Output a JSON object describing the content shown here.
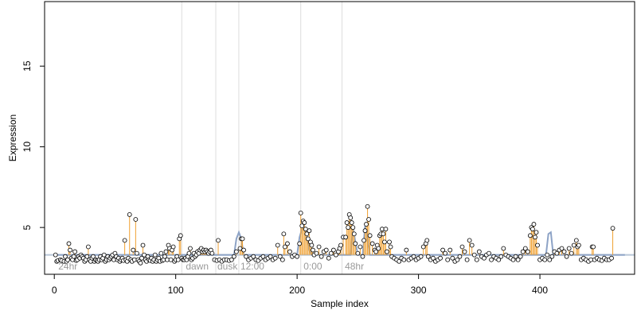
{
  "chart_data": {
    "type": "scatter",
    "title": "",
    "xlabel": "Sample index",
    "ylabel": "Expression",
    "xlim": [
      -8,
      478
    ],
    "ylim": [
      2.1,
      19.0
    ],
    "x_ticks": [
      0,
      100,
      200,
      300,
      400
    ],
    "x_tick_labels": [
      "0",
      "100",
      "200",
      "300",
      "400"
    ],
    "y_ticks": [
      5,
      10,
      15
    ],
    "y_tick_labels": [
      "5",
      "10",
      "15"
    ],
    "grid": false,
    "legend": "none",
    "vlines": [
      105,
      133,
      152,
      203,
      237
    ],
    "annotations": [
      {
        "x": 2,
        "label": "24hr"
      },
      {
        "x": 107,
        "label": "dawn"
      },
      {
        "x": 133,
        "label": "dusk"
      },
      {
        "x": 152,
        "label": "12:00"
      },
      {
        "x": 204,
        "label": "0:00"
      },
      {
        "x": 238,
        "label": "48hr"
      }
    ],
    "baseline": 3.3,
    "fit_curve": [
      [
        0,
        3.3
      ],
      [
        148,
        3.3
      ],
      [
        150,
        4.3
      ],
      [
        152,
        4.7
      ],
      [
        154,
        4.3
      ],
      [
        156,
        3.3
      ],
      [
        200,
        3.3
      ],
      [
        202,
        4.4
      ],
      [
        204,
        4.9
      ],
      [
        206,
        4.9
      ],
      [
        208,
        4.5
      ],
      [
        210,
        3.6
      ],
      [
        212,
        3.3
      ],
      [
        244,
        3.3
      ],
      [
        246,
        5.0
      ],
      [
        248,
        4.1
      ],
      [
        250,
        3.3
      ],
      [
        254,
        3.3
      ],
      [
        256,
        5.1
      ],
      [
        258,
        4.3
      ],
      [
        260,
        3.3
      ],
      [
        405,
        3.3
      ],
      [
        407,
        4.6
      ],
      [
        409,
        4.7
      ],
      [
        411,
        3.3
      ],
      [
        470,
        3.3
      ]
    ],
    "points": [
      [
        1,
        3.3
      ],
      [
        2,
        2.9
      ],
      [
        3,
        2.95
      ],
      [
        5,
        3.0
      ],
      [
        6,
        2.95
      ],
      [
        8,
        2.9
      ],
      [
        9,
        3.2
      ],
      [
        10,
        2.9
      ],
      [
        11,
        3.0
      ],
      [
        12,
        4.0
      ],
      [
        13,
        3.6
      ],
      [
        14,
        3.1
      ],
      [
        15,
        3.0
      ],
      [
        16,
        3.2
      ],
      [
        17,
        3.5
      ],
      [
        18,
        2.95
      ],
      [
        19,
        3.0
      ],
      [
        20,
        3.2
      ],
      [
        21,
        3.1
      ],
      [
        22,
        3.3
      ],
      [
        23,
        3.2
      ],
      [
        24,
        3.1
      ],
      [
        25,
        2.9
      ],
      [
        26,
        3.0
      ],
      [
        27,
        3.2
      ],
      [
        28,
        3.8
      ],
      [
        29,
        3.0
      ],
      [
        30,
        2.9
      ],
      [
        31,
        3.1
      ],
      [
        32,
        3.2
      ],
      [
        33,
        2.9
      ],
      [
        34,
        3.0
      ],
      [
        35,
        2.95
      ],
      [
        36,
        2.9
      ],
      [
        37,
        3.0
      ],
      [
        38,
        3.2
      ],
      [
        39,
        3.0
      ],
      [
        40,
        3.1
      ],
      [
        41,
        3.3
      ],
      [
        42,
        2.9
      ],
      [
        43,
        3.0
      ],
      [
        44,
        3.2
      ],
      [
        45,
        3.0
      ],
      [
        46,
        3.1
      ],
      [
        47,
        3.2
      ],
      [
        48,
        3.3
      ],
      [
        49,
        3.0
      ],
      [
        50,
        3.4
      ],
      [
        51,
        3.2
      ],
      [
        52,
        3.0
      ],
      [
        53,
        3.1
      ],
      [
        54,
        2.9
      ],
      [
        55,
        3.0
      ],
      [
        56,
        3.1
      ],
      [
        57,
        2.95
      ],
      [
        58,
        4.2
      ],
      [
        59,
        3.0
      ],
      [
        60,
        2.9
      ],
      [
        61,
        3.1
      ],
      [
        62,
        5.8
      ],
      [
        63,
        3.0
      ],
      [
        64,
        2.9
      ],
      [
        65,
        3.6
      ],
      [
        66,
        3.0
      ],
      [
        67,
        5.5
      ],
      [
        68,
        3.4
      ],
      [
        69,
        3.0
      ],
      [
        70,
        2.9
      ],
      [
        71,
        2.8
      ],
      [
        72,
        3.1
      ],
      [
        73,
        3.9
      ],
      [
        74,
        3.3
      ],
      [
        75,
        3.0
      ],
      [
        76,
        2.9
      ],
      [
        77,
        3.2
      ],
      [
        78,
        3.0
      ],
      [
        79,
        2.95
      ],
      [
        80,
        3.1
      ],
      [
        81,
        2.9
      ],
      [
        82,
        3.0
      ],
      [
        83,
        3.3
      ],
      [
        84,
        2.9
      ],
      [
        85,
        3.0
      ],
      [
        86,
        3.1
      ],
      [
        87,
        2.9
      ],
      [
        88,
        3.4
      ],
      [
        89,
        2.95
      ],
      [
        90,
        3.0
      ],
      [
        91,
        3.2
      ],
      [
        92,
        3.5
      ],
      [
        93,
        3.0
      ],
      [
        94,
        3.9
      ],
      [
        95,
        3.7
      ],
      [
        96,
        3.0
      ],
      [
        97,
        3.6
      ],
      [
        98,
        3.8
      ],
      [
        99,
        2.9
      ],
      [
        100,
        3.0
      ],
      [
        101,
        3.2
      ],
      [
        102,
        3.0
      ],
      [
        103,
        4.3
      ],
      [
        104,
        4.5
      ],
      [
        105,
        3.1
      ],
      [
        106,
        3.0
      ],
      [
        107,
        3.0
      ],
      [
        108,
        3.1
      ],
      [
        109,
        3.0
      ],
      [
        110,
        3.2
      ],
      [
        111,
        3.4
      ],
      [
        112,
        3.7
      ],
      [
        113,
        3.0
      ],
      [
        114,
        3.1
      ],
      [
        115,
        3.4
      ],
      [
        116,
        3.2
      ],
      [
        117,
        3.3
      ],
      [
        118,
        3.5
      ],
      [
        119,
        3.4
      ],
      [
        120,
        3.6
      ],
      [
        121,
        3.7
      ],
      [
        122,
        3.5
      ],
      [
        123,
        3.6
      ],
      [
        124,
        3.5
      ],
      [
        125,
        3.6
      ],
      [
        126,
        3.5
      ],
      [
        127,
        3.4
      ],
      [
        128,
        3.5
      ],
      [
        129,
        3.6
      ],
      [
        130,
        3.4
      ],
      [
        132,
        3.0
      ],
      [
        134,
        2.95
      ],
      [
        135,
        4.2
      ],
      [
        136,
        3.0
      ],
      [
        138,
        2.9
      ],
      [
        140,
        3.0
      ],
      [
        142,
        3.0
      ],
      [
        144,
        2.95
      ],
      [
        146,
        3.0
      ],
      [
        148,
        3.2
      ],
      [
        150,
        3.5
      ],
      [
        153,
        3.7
      ],
      [
        154,
        4.3
      ],
      [
        155,
        4.3
      ],
      [
        156,
        3.6
      ],
      [
        158,
        3.2
      ],
      [
        160,
        3.0
      ],
      [
        162,
        3.1
      ],
      [
        164,
        3.2
      ],
      [
        166,
        3.0
      ],
      [
        168,
        2.95
      ],
      [
        170,
        3.1
      ],
      [
        172,
        3.2
      ],
      [
        174,
        3.0
      ],
      [
        176,
        3.1
      ],
      [
        178,
        3.2
      ],
      [
        180,
        3.0
      ],
      [
        182,
        3.1
      ],
      [
        184,
        3.9
      ],
      [
        186,
        3.2
      ],
      [
        188,
        3.0
      ],
      [
        189,
        4.6
      ],
      [
        190,
        3.8
      ],
      [
        192,
        4.0
      ],
      [
        194,
        3.5
      ],
      [
        196,
        3.2
      ],
      [
        198,
        3.3
      ],
      [
        200,
        3.2
      ],
      [
        202,
        4.0
      ],
      [
        203,
        5.9
      ],
      [
        204,
        5.1
      ],
      [
        205,
        5.4
      ],
      [
        206,
        5.3
      ],
      [
        207,
        4.9
      ],
      [
        208,
        4.6
      ],
      [
        209,
        4.3
      ],
      [
        210,
        4.8
      ],
      [
        211,
        4.1
      ],
      [
        212,
        3.9
      ],
      [
        213,
        3.6
      ],
      [
        214,
        3.3
      ],
      [
        216,
        3.4
      ],
      [
        218,
        3.8
      ],
      [
        220,
        3.2
      ],
      [
        222,
        3.5
      ],
      [
        224,
        3.6
      ],
      [
        226,
        3.1
      ],
      [
        228,
        3.4
      ],
      [
        230,
        3.6
      ],
      [
        232,
        3.3
      ],
      [
        234,
        3.5
      ],
      [
        235,
        3.7
      ],
      [
        236,
        3.9
      ],
      [
        238,
        4.4
      ],
      [
        240,
        4.4
      ],
      [
        241,
        5.3
      ],
      [
        242,
        5.0
      ],
      [
        243,
        5.8
      ],
      [
        244,
        5.6
      ],
      [
        245,
        5.3
      ],
      [
        246,
        5.0
      ],
      [
        247,
        4.6
      ],
      [
        248,
        4.0
      ],
      [
        250,
        3.4
      ],
      [
        252,
        3.8
      ],
      [
        254,
        3.2
      ],
      [
        255,
        4.2
      ],
      [
        256,
        4.8
      ],
      [
        257,
        5.2
      ],
      [
        258,
        6.3
      ],
      [
        259,
        5.5
      ],
      [
        260,
        4.5
      ],
      [
        262,
        4.0
      ],
      [
        264,
        3.6
      ],
      [
        265,
        3.5
      ],
      [
        266,
        3.9
      ],
      [
        267,
        3.7
      ],
      [
        268,
        4.5
      ],
      [
        269,
        4.6
      ],
      [
        270,
        4.9
      ],
      [
        271,
        4.6
      ],
      [
        272,
        4.1
      ],
      [
        273,
        4.9
      ],
      [
        274,
        3.5
      ],
      [
        276,
        4.1
      ],
      [
        277,
        3.8
      ],
      [
        278,
        3.2
      ],
      [
        280,
        3.1
      ],
      [
        282,
        3.0
      ],
      [
        284,
        2.9
      ],
      [
        286,
        3.1
      ],
      [
        288,
        3.0
      ],
      [
        290,
        3.6
      ],
      [
        292,
        3.0
      ],
      [
        294,
        3.1
      ],
      [
        296,
        3.2
      ],
      [
        298,
        3.0
      ],
      [
        300,
        3.1
      ],
      [
        302,
        3.2
      ],
      [
        304,
        3.8
      ],
      [
        306,
        4.0
      ],
      [
        307,
        4.2
      ],
      [
        308,
        3.2
      ],
      [
        310,
        3.0
      ],
      [
        312,
        3.1
      ],
      [
        314,
        2.9
      ],
      [
        316,
        3.0
      ],
      [
        318,
        3.1
      ],
      [
        320,
        3.6
      ],
      [
        322,
        3.4
      ],
      [
        324,
        3.0
      ],
      [
        326,
        3.6
      ],
      [
        328,
        3.1
      ],
      [
        330,
        2.9
      ],
      [
        332,
        3.0
      ],
      [
        334,
        3.2
      ],
      [
        336,
        3.8
      ],
      [
        338,
        3.5
      ],
      [
        340,
        3.0
      ],
      [
        342,
        4.2
      ],
      [
        344,
        3.9
      ],
      [
        346,
        3.3
      ],
      [
        348,
        3.0
      ],
      [
        350,
        3.5
      ],
      [
        352,
        3.2
      ],
      [
        354,
        3.1
      ],
      [
        356,
        3.3
      ],
      [
        358,
        3.4
      ],
      [
        360,
        3.0
      ],
      [
        362,
        3.2
      ],
      [
        364,
        3.1
      ],
      [
        366,
        3.0
      ],
      [
        368,
        3.2
      ],
      [
        370,
        3.7
      ],
      [
        372,
        3.3
      ],
      [
        374,
        3.2
      ],
      [
        376,
        3.1
      ],
      [
        378,
        3.0
      ],
      [
        380,
        3.2
      ],
      [
        382,
        3.0
      ],
      [
        384,
        3.2
      ],
      [
        386,
        3.5
      ],
      [
        388,
        3.7
      ],
      [
        390,
        3.5
      ],
      [
        392,
        4.5
      ],
      [
        393,
        5.0
      ],
      [
        394,
        4.9
      ],
      [
        395,
        5.2
      ],
      [
        396,
        4.4
      ],
      [
        397,
        4.7
      ],
      [
        398,
        3.9
      ],
      [
        400,
        3.0
      ],
      [
        402,
        3.1
      ],
      [
        404,
        3.0
      ],
      [
        406,
        3.3
      ],
      [
        408,
        3.0
      ],
      [
        410,
        3.2
      ],
      [
        412,
        3.5
      ],
      [
        414,
        3.4
      ],
      [
        416,
        3.6
      ],
      [
        418,
        3.7
      ],
      [
        420,
        3.5
      ],
      [
        422,
        3.2
      ],
      [
        424,
        3.7
      ],
      [
        426,
        3.4
      ],
      [
        428,
        3.9
      ],
      [
        430,
        4.2
      ],
      [
        431,
        3.8
      ],
      [
        432,
        3.9
      ],
      [
        434,
        3.0
      ],
      [
        436,
        3.1
      ],
      [
        438,
        3.0
      ],
      [
        440,
        2.9
      ],
      [
        442,
        3.0
      ],
      [
        443,
        3.8
      ],
      [
        444,
        3.8
      ],
      [
        445,
        3.0
      ],
      [
        447,
        3.1
      ],
      [
        449,
        3.0
      ],
      [
        451,
        2.95
      ],
      [
        453,
        3.1
      ],
      [
        455,
        3.0
      ],
      [
        457,
        3.0
      ],
      [
        459,
        3.1
      ],
      [
        460,
        4.95
      ]
    ],
    "colors": {
      "point_fill": "#ffffff",
      "point_stroke": "#000000",
      "stem": "#f0a030",
      "baseline": "#b9c6d8",
      "curve": "#8da3c6",
      "vline": "#dddddd",
      "annotation": "#9a9a9a"
    }
  }
}
